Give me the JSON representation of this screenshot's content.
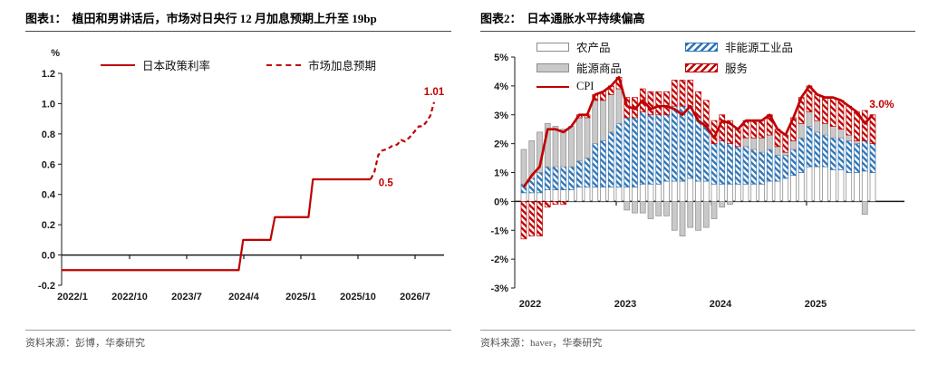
{
  "panels": [
    {
      "figure_label": "图表1：",
      "title": "植田和男讲话后，市场对日央行 12 月加息预期上升至 19bp",
      "source": "资料来源：彭博，华泰研究"
    },
    {
      "figure_label": "图表2：",
      "title": "日本通胀水平持续偏高",
      "source": "资料来源：haver，华泰研究"
    }
  ],
  "colors": {
    "red": "#c00000",
    "blue": "#2e74b5",
    "gray_fill": "#c9c9c9",
    "gray_stroke": "#8c8c8c",
    "white_stroke": "#7f7f7f",
    "axis": "#1a1a1a"
  },
  "chart_data": [
    {
      "type": "line",
      "title": "植田和男讲话后，市场对日央行12月加息预期上升至19bp",
      "unit": "%",
      "ylim": [
        -0.2,
        1.2
      ],
      "y_tick_labels": [
        "1.2",
        "1.0",
        "0.8",
        "0.6",
        "0.4",
        "0.2",
        "0.0",
        "-0.2"
      ],
      "x_ticks": [
        {
          "label": "2022/1",
          "m": 0
        },
        {
          "label": "2022/10",
          "m": 9
        },
        {
          "label": "2023/7",
          "m": 18
        },
        {
          "label": "2024/4",
          "m": 27
        },
        {
          "label": "2025/1",
          "m": 36
        },
        {
          "label": "2025/10",
          "m": 45
        },
        {
          "label": "2026/7",
          "m": 54
        }
      ],
      "grid": false,
      "legend_position": "top",
      "series": [
        {
          "name": "日本政策利率",
          "style": "solid",
          "color": "#c00000",
          "from_axis": true,
          "points": [
            [
              0,
              -0.1
            ],
            [
              26.2,
              -0.1
            ],
            [
              26.9,
              0.1
            ],
            [
              31.2,
              0.1
            ],
            [
              31.9,
              0.25
            ],
            [
              37.2,
              0.25
            ],
            [
              37.9,
              0.5
            ],
            [
              47,
              0.5
            ]
          ]
        },
        {
          "name": "市场加息预期",
          "style": "dashed",
          "color": "#c00000",
          "from_axis": false,
          "points": [
            [
              47,
              0.5
            ],
            [
              47.6,
              0.55
            ],
            [
              48.2,
              0.66
            ],
            [
              48.8,
              0.69
            ],
            [
              49.6,
              0.7
            ],
            [
              50.4,
              0.72
            ],
            [
              51.2,
              0.73
            ],
            [
              51.8,
              0.76
            ],
            [
              52.4,
              0.75
            ],
            [
              53.2,
              0.78
            ],
            [
              54.0,
              0.82
            ],
            [
              54.6,
              0.85
            ],
            [
              55.2,
              0.85
            ],
            [
              55.8,
              0.88
            ],
            [
              56.4,
              0.92
            ],
            [
              57.0,
              1.01
            ]
          ]
        }
      ],
      "annotations": [
        {
          "text": "0.5",
          "m": 49.4,
          "v": 0.48
        },
        {
          "text": "1.01",
          "m": 57.0,
          "v": 1.08
        }
      ]
    },
    {
      "type": "stacked-bar-line",
      "title": "日本通胀水平持续偏高",
      "ylim": [
        -3,
        5
      ],
      "y_tick_labels": [
        "5%",
        "4%",
        "3%",
        "2%",
        "1%",
        "0%",
        "-1%",
        "-2%",
        "-3%"
      ],
      "start": "2022/1",
      "months": 45,
      "year_labels": [
        {
          "label": "2022",
          "m": 0
        },
        {
          "label": "2023",
          "m": 12
        },
        {
          "label": "2024",
          "m": 24
        },
        {
          "label": "2025",
          "m": 36
        }
      ],
      "year_tick_months": [
        12,
        24,
        36
      ],
      "grid": false,
      "series": [
        {
          "key": "agri",
          "name": "农产品",
          "pattern": "white",
          "values": [
            0.3,
            0.3,
            0.3,
            0.4,
            0.4,
            0.4,
            0.4,
            0.5,
            0.5,
            0.5,
            0.5,
            0.5,
            0.5,
            0.5,
            0.5,
            0.6,
            0.6,
            0.6,
            0.7,
            0.7,
            0.7,
            0.8,
            0.7,
            0.7,
            0.6,
            0.6,
            0.6,
            0.6,
            0.6,
            0.6,
            0.6,
            0.7,
            0.7,
            0.8,
            0.9,
            1.0,
            1.2,
            1.2,
            1.2,
            1.1,
            1.1,
            1.0,
            1.0,
            1.05,
            1.0
          ]
        },
        {
          "key": "industrial",
          "name": "非能源工业品",
          "pattern": "hatch-blue",
          "values": [
            0.3,
            0.5,
            0.7,
            0.8,
            0.8,
            0.8,
            0.8,
            0.9,
            1.0,
            1.5,
            1.6,
            1.9,
            2.2,
            2.4,
            2.4,
            2.5,
            2.4,
            2.4,
            2.3,
            2.6,
            2.6,
            2.5,
            2.2,
            1.9,
            1.4,
            1.5,
            1.4,
            1.3,
            1.3,
            1.2,
            1.1,
            1.1,
            0.9,
            0.8,
            0.9,
            1.2,
            1.4,
            1.2,
            1.1,
            1.1,
            1.1,
            1.1,
            1.0,
            1.05,
            1.0
          ]
        },
        {
          "key": "energy",
          "name": "能源商品",
          "pattern": "gray",
          "values": [
            1.2,
            1.3,
            1.4,
            1.5,
            1.4,
            1.3,
            1.4,
            1.5,
            1.4,
            1.5,
            1.4,
            1.3,
            1.2,
            -0.3,
            -0.4,
            -0.4,
            -0.6,
            -0.5,
            -0.5,
            -1.0,
            -1.2,
            -0.9,
            -1.0,
            -0.9,
            -0.6,
            -0.2,
            -0.1,
            0.0,
            0.3,
            0.4,
            0.5,
            0.5,
            0.3,
            0.1,
            0.3,
            0.5,
            0.5,
            0.4,
            0.4,
            0.4,
            0.3,
            0.2,
            0.1,
            -0.45,
            0.0
          ]
        },
        {
          "key": "services",
          "name": "服务",
          "pattern": "hatch-red",
          "values": [
            -1.3,
            -1.2,
            -1.2,
            -0.2,
            -0.1,
            -0.1,
            0.0,
            0.1,
            0.1,
            0.2,
            0.3,
            0.3,
            0.4,
            0.7,
            0.7,
            0.8,
            0.8,
            0.8,
            0.8,
            0.9,
            0.9,
            0.9,
            0.9,
            0.9,
            0.8,
            0.9,
            0.8,
            0.6,
            0.6,
            0.6,
            0.6,
            0.7,
            0.6,
            0.6,
            0.8,
            0.9,
            0.9,
            0.9,
            0.9,
            1.0,
            1.0,
            1.0,
            1.0,
            1.05,
            1.0
          ]
        }
      ],
      "cpi": {
        "name": "CPI",
        "color": "#c00000",
        "values": [
          0.5,
          0.9,
          1.2,
          2.5,
          2.5,
          2.4,
          2.6,
          3.0,
          3.0,
          3.7,
          3.8,
          4.0,
          4.3,
          3.3,
          3.2,
          3.5,
          3.2,
          3.3,
          3.3,
          3.2,
          3.0,
          3.3,
          2.8,
          2.6,
          2.2,
          2.8,
          2.7,
          2.5,
          2.8,
          2.8,
          2.8,
          3.0,
          2.5,
          2.3,
          2.9,
          3.6,
          4.0,
          3.7,
          3.6,
          3.6,
          3.5,
          3.3,
          3.1,
          2.7,
          3.0
        ],
        "end_label": "3.0%"
      }
    }
  ]
}
